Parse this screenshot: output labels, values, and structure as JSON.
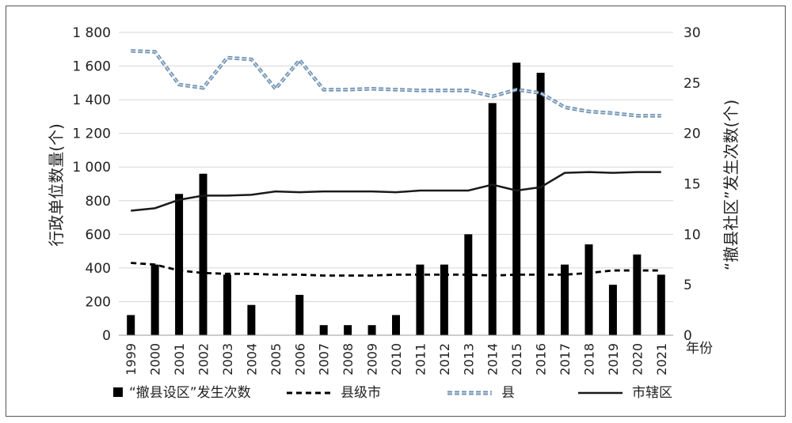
{
  "chart_data": {
    "type": "bar+line",
    "categories": [
      "1999",
      "2000",
      "2001",
      "2002",
      "2003",
      "2004",
      "2005",
      "2006",
      "2007",
      "2008",
      "2009",
      "2010",
      "2011",
      "2012",
      "2013",
      "2014",
      "2015",
      "2016",
      "2017",
      "2018",
      "2019",
      "2020",
      "2021"
    ],
    "ylabel": "行政单位数量(个)",
    "y2label": "“撤县社区”发生次数(个)",
    "xunit": "年份",
    "ylim": [
      0,
      1800
    ],
    "y2lim": [
      0,
      30
    ],
    "yticks": [
      "0",
      "200",
      "400",
      "600",
      "800",
      "1 000",
      "1 200",
      "1 400",
      "1 600",
      "1 800"
    ],
    "y2ticks": [
      "0",
      "5",
      "10",
      "15",
      "20",
      "25",
      "30"
    ],
    "grid": true,
    "legend_position": "bottom",
    "bars": {
      "name": "“撤县设区”发生次数",
      "axis": "right",
      "color": "#000000",
      "values": [
        2,
        7,
        14,
        16,
        6,
        3,
        0,
        4,
        1,
        1,
        1,
        2,
        7,
        7,
        10,
        23,
        27,
        26,
        7,
        9,
        5,
        8,
        6
      ]
    },
    "series": [
      {
        "name": "县级市",
        "axis": "left",
        "style": "dashed",
        "color": "#000000",
        "values": [
          430,
          420,
          385,
          370,
          365,
          365,
          360,
          360,
          355,
          355,
          355,
          360,
          360,
          360,
          360,
          355,
          360,
          360,
          360,
          370,
          385,
          385,
          385
        ]
      },
      {
        "name": "县",
        "axis": "left",
        "style": "dashed-double",
        "color": "#6d8fb0",
        "values": [
          1690,
          1685,
          1490,
          1470,
          1650,
          1640,
          1465,
          1635,
          1460,
          1460,
          1465,
          1460,
          1455,
          1455,
          1455,
          1420,
          1460,
          1440,
          1355,
          1330,
          1320,
          1305,
          1305
        ]
      },
      {
        "name": "市辖区",
        "axis": "left",
        "style": "solid",
        "color": "#1a1a1a",
        "values": [
          740,
          755,
          805,
          830,
          830,
          835,
          855,
          850,
          855,
          855,
          855,
          850,
          860,
          860,
          860,
          895,
          860,
          880,
          965,
          970,
          965,
          970,
          970
        ]
      }
    ]
  }
}
